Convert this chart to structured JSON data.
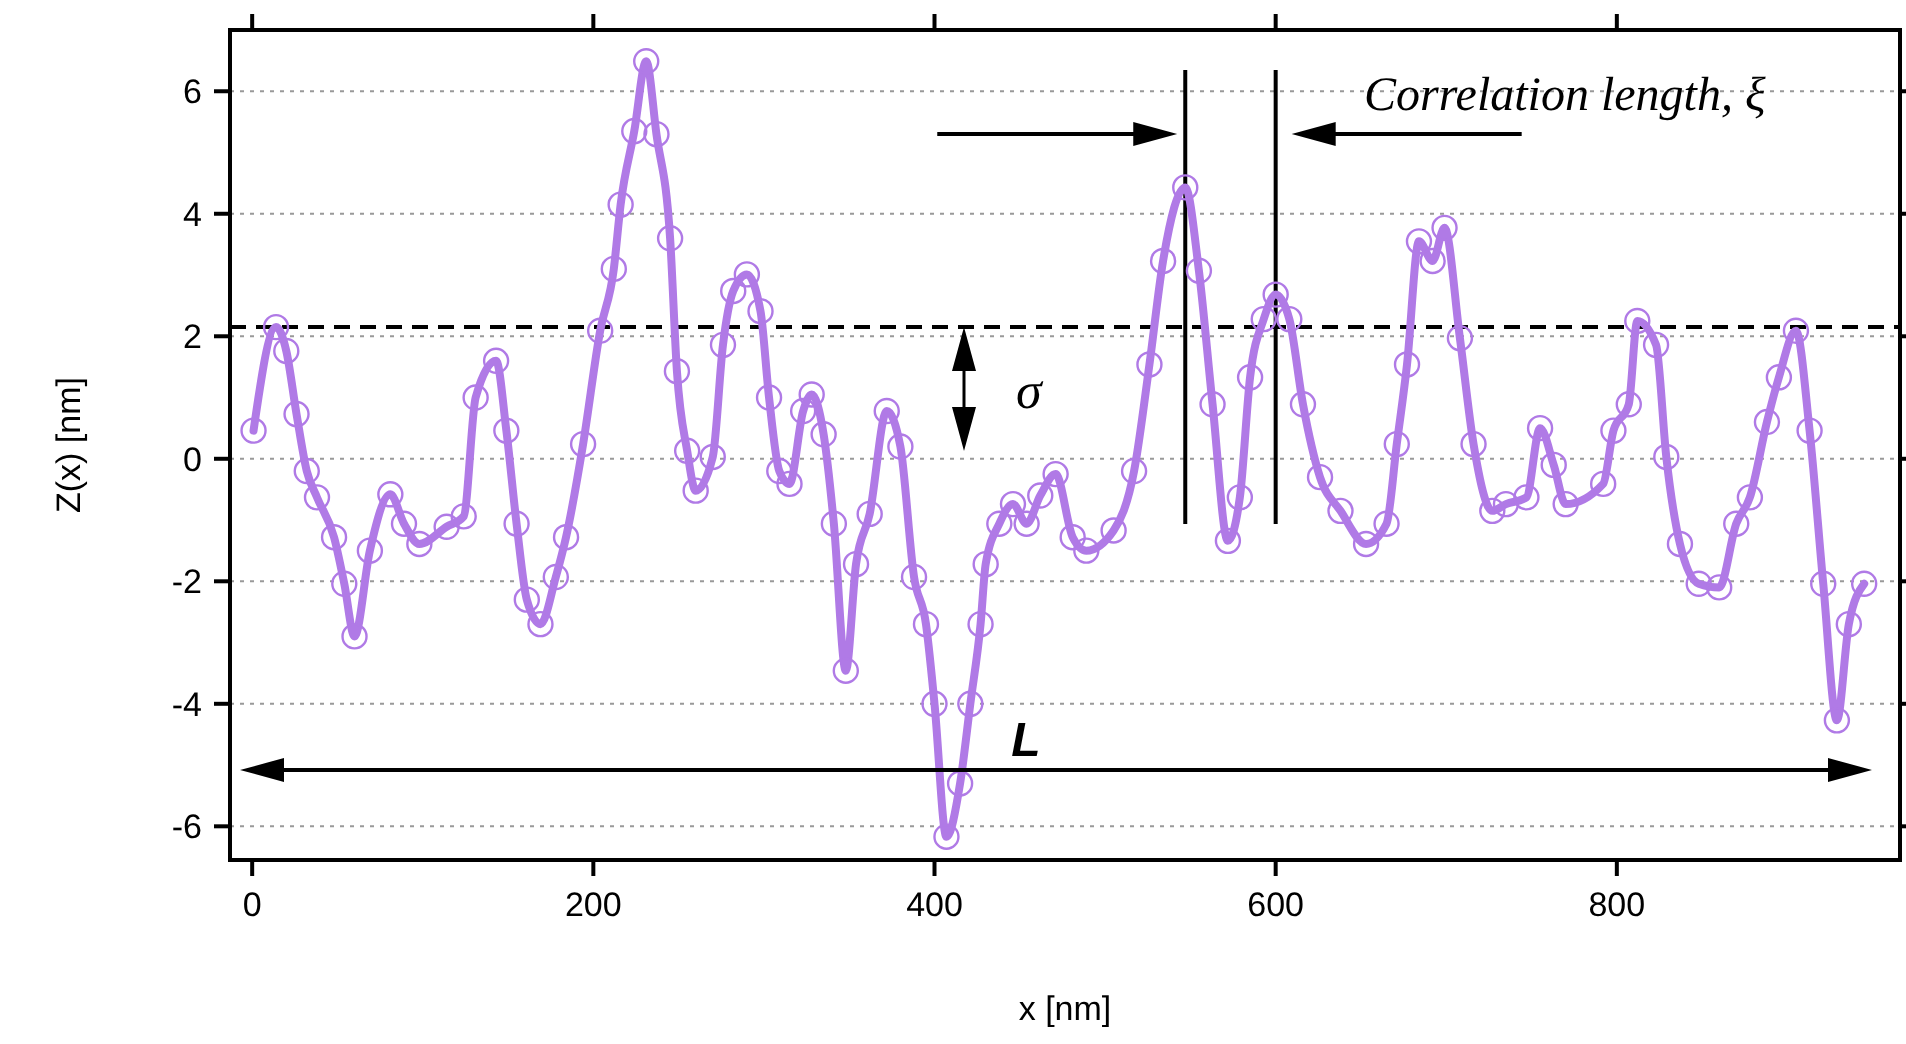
{
  "chart_data": {
    "type": "line",
    "xlabel": "x [nm]",
    "ylabel": "Z(x) [nm]",
    "xlim": [
      -13,
      966
    ],
    "ylim": [
      -6.55,
      7.0
    ],
    "xticks": [
      0,
      200,
      400,
      600,
      800
    ],
    "yticks": [
      -6,
      -4,
      -2,
      0,
      2,
      4,
      6
    ],
    "grid": "y",
    "marker": "circle",
    "line_style": "solid",
    "series": [
      {
        "color": "#b07ae6",
        "x": [
          0.8,
          14,
          20,
          26,
          32,
          38,
          48,
          54,
          60,
          69,
          81,
          89,
          98,
          114,
          124,
          131,
          143,
          149,
          155,
          161,
          169,
          178,
          184,
          194,
          204,
          212,
          216,
          224,
          231,
          237,
          245,
          249,
          255,
          260,
          270,
          276,
          282,
          290,
          298,
          303,
          309,
          315,
          323,
          328,
          335,
          341,
          348,
          354,
          362,
          372,
          380,
          388,
          395,
          400,
          407,
          415,
          421,
          427,
          430,
          438,
          446,
          454,
          462,
          471,
          481,
          489,
          505,
          517,
          526,
          534,
          547,
          555,
          563,
          572,
          579,
          585,
          593,
          600,
          608,
          616,
          626,
          638,
          653,
          665,
          671,
          677,
          684,
          692,
          699,
          708,
          716,
          727,
          735,
          747,
          755,
          763,
          770,
          792,
          798,
          807,
          812,
          823,
          829,
          837,
          848,
          860,
          870,
          878,
          888,
          895,
          905,
          913,
          921,
          929,
          936,
          945
        ],
        "values": [
          0.46,
          2.15,
          1.76,
          0.73,
          -0.2,
          -0.63,
          -1.28,
          -2.04,
          -2.9,
          -1.5,
          -0.58,
          -1.06,
          -1.39,
          -1.11,
          -0.94,
          1.0,
          1.6,
          0.46,
          -1.06,
          -2.3,
          -2.7,
          -1.93,
          -1.28,
          0.24,
          2.09,
          3.1,
          4.15,
          5.35,
          6.49,
          5.3,
          3.6,
          1.43,
          0.13,
          -0.52,
          0.03,
          1.86,
          2.74,
          3.01,
          2.41,
          1.0,
          -0.2,
          -0.41,
          0.78,
          1.05,
          0.4,
          -1.06,
          -3.46,
          -1.72,
          -0.9,
          0.78,
          0.2,
          -1.93,
          -2.7,
          -4.0,
          -6.17,
          -5.3,
          -4.0,
          -2.7,
          -1.72,
          -1.06,
          -0.74,
          -1.06,
          -0.6,
          -0.25,
          -1.28,
          -1.5,
          -1.17,
          -0.2,
          1.54,
          3.23,
          4.43,
          3.07,
          0.89,
          -1.34,
          -0.63,
          1.33,
          2.28,
          2.68,
          2.28,
          0.89,
          -0.3,
          -0.85,
          -1.39,
          -1.06,
          0.24,
          1.54,
          3.55,
          3.23,
          3.77,
          1.97,
          0.24,
          -0.85,
          -0.74,
          -0.63,
          0.5,
          -0.1,
          -0.74,
          -0.41,
          0.46,
          0.89,
          2.25,
          1.86,
          0.03,
          -1.39,
          -2.04,
          -2.1,
          -1.06,
          -0.63,
          0.6,
          1.33,
          2.09,
          0.46,
          -2.04,
          -4.27,
          -2.7,
          -2.04
        ]
      }
    ],
    "ref_lines": [
      {
        "axis": "y",
        "value": 2.15,
        "label": null,
        "color": "#000000",
        "line_style": "dashed"
      },
      {
        "axis": "x",
        "value": 547,
        "label": null,
        "color": "#000000",
        "line_style": "solid"
      },
      {
        "axis": "x",
        "value": 600,
        "label": null,
        "color": "#000000",
        "line_style": "solid"
      }
    ],
    "annotations": [
      "Correlation length, ξ",
      "σ",
      "L"
    ]
  }
}
